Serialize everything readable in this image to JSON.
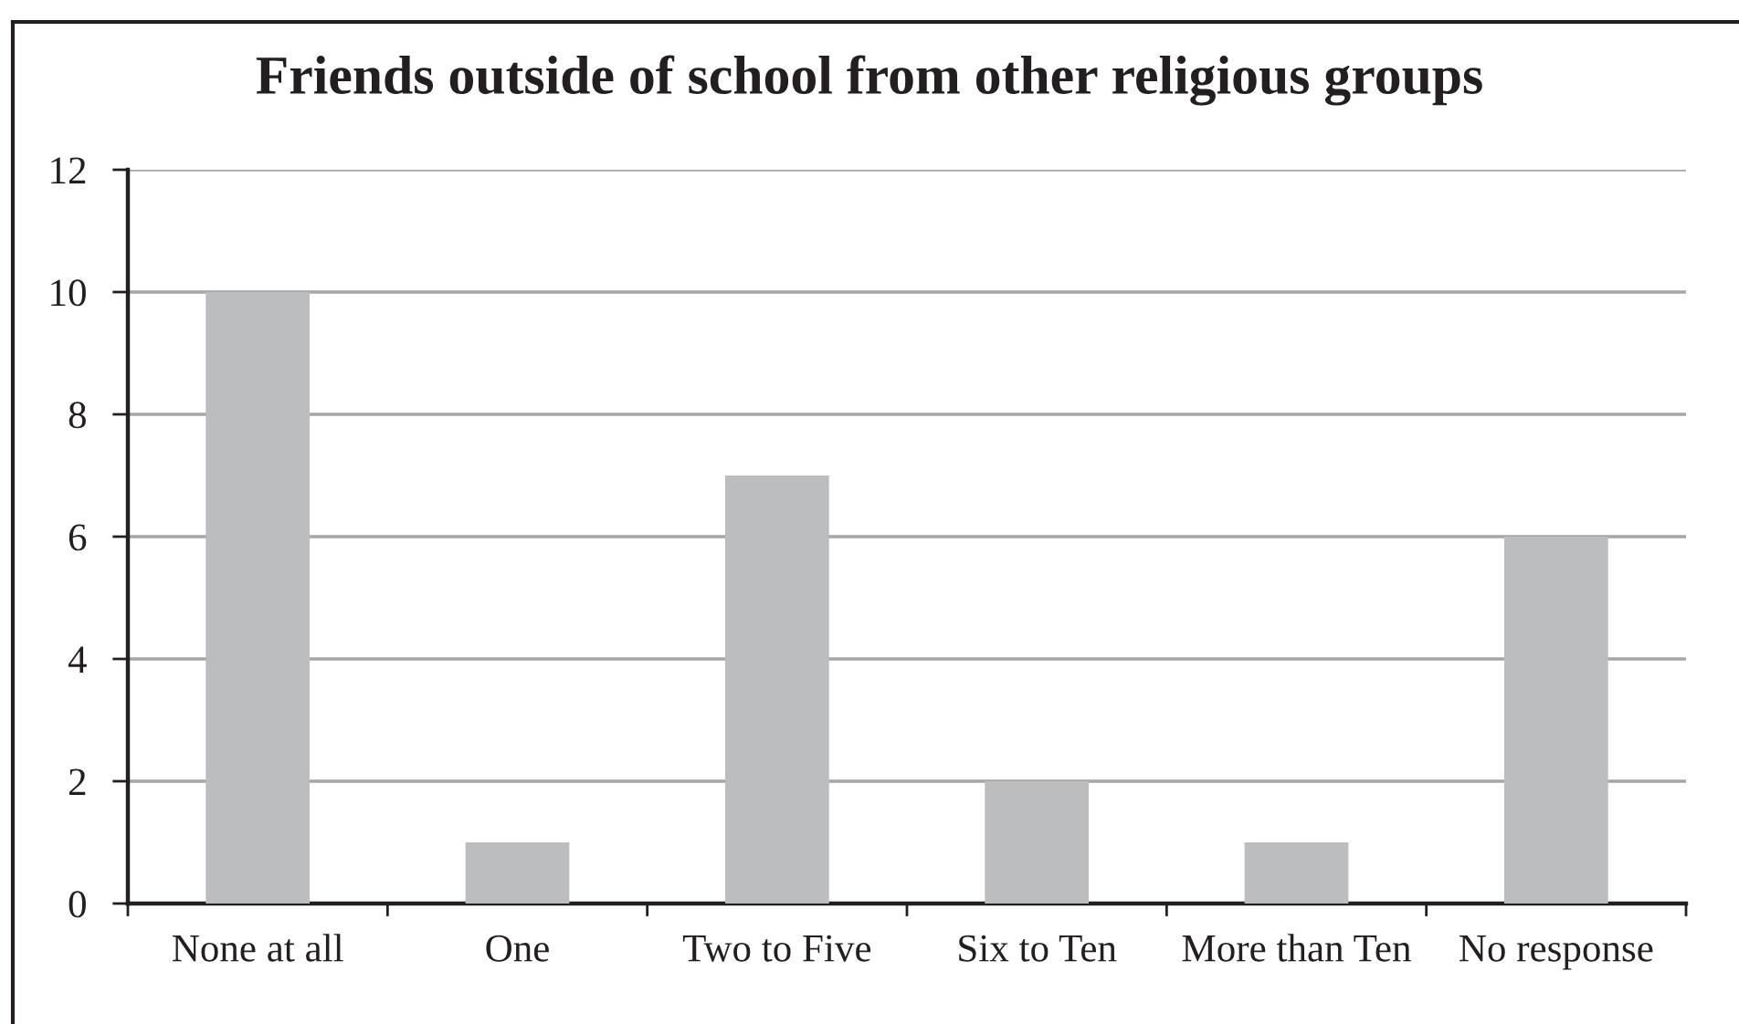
{
  "chart_data": {
    "type": "bar",
    "title": "Friends outside of school from other religious groups",
    "categories": [
      "None at all",
      "One",
      "Two to Five",
      "Six to Ten",
      "More than Ten",
      "No response"
    ],
    "values": [
      10,
      1,
      7,
      2,
      1,
      6
    ],
    "color": "#bcbdbf",
    "ylim": [
      0,
      12
    ],
    "yticks": [
      0,
      2,
      4,
      6,
      8,
      10,
      12
    ],
    "grid": "y"
  }
}
